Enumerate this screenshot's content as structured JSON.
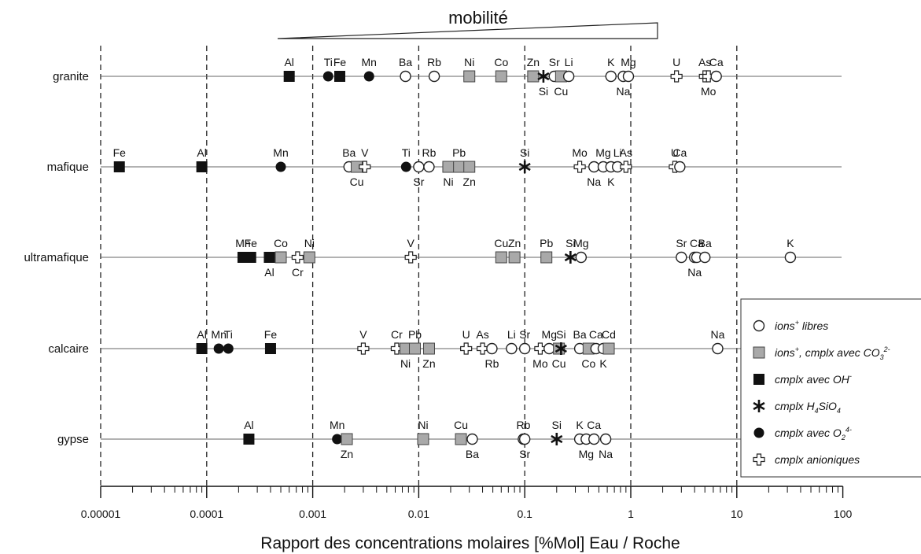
{
  "chart_data": {
    "type": "scatter",
    "title": "mobilité",
    "xlabel": "Rapport des concentrations molaires [%Mol]  Eau / Roche",
    "ylabel": "",
    "x_scale": "log",
    "xlim": [
      1e-05,
      100
    ],
    "x_ticks": [
      "0.00001",
      "0.0001",
      "0.001",
      "0.01",
      "0.1",
      "1",
      "10",
      "100"
    ],
    "x_tick_values": [
      1e-05,
      0.0001,
      0.001,
      0.01,
      0.1,
      1,
      10,
      100
    ],
    "dashed_reference_lines": [
      1e-05,
      0.0001,
      0.001,
      0.01,
      0.1,
      1,
      10
    ],
    "legend": {
      "position": "right",
      "entries": [
        {
          "type": "free_ion",
          "text": "ions",
          "sup": "+",
          "rest": " libres"
        },
        {
          "type": "co3_complex",
          "text": "ions",
          "sup": "+",
          "rest": ", cmplx avec CO",
          "sub": "3",
          "sup2": "2-"
        },
        {
          "type": "oh_complex",
          "text": "cmplx avec OH",
          "sup": "-"
        },
        {
          "type": "h4sio4_complex",
          "text": "cmplx H",
          "sub": "4",
          "rest": "SiO",
          "sub2": "4"
        },
        {
          "type": "o2_complex",
          "text": "cmplx avec O",
          "sub": "2",
          "sup": "4-"
        },
        {
          "type": "anionic_complex",
          "text": "cmplx anioniques"
        }
      ]
    },
    "rows": [
      {
        "name": "granite",
        "points": [
          {
            "el": "Al",
            "x": 0.0006,
            "type": "oh_complex",
            "pos": "above"
          },
          {
            "el": "Ti",
            "x": 0.0014,
            "type": "o2_complex",
            "pos": "above"
          },
          {
            "el": "Fe",
            "x": 0.0018,
            "type": "oh_complex",
            "pos": "above"
          },
          {
            "el": "Mn",
            "x": 0.0034,
            "type": "o2_complex",
            "pos": "above"
          },
          {
            "el": "Ba",
            "x": 0.0075,
            "type": "free_ion",
            "pos": "above"
          },
          {
            "el": "Rb",
            "x": 0.014,
            "type": "free_ion",
            "pos": "above"
          },
          {
            "el": "Ni",
            "x": 0.03,
            "type": "co3_complex",
            "pos": "above"
          },
          {
            "el": "Co",
            "x": 0.06,
            "type": "co3_complex",
            "pos": "above"
          },
          {
            "el": "Zn",
            "x": 0.12,
            "type": "co3_complex",
            "pos": "above"
          },
          {
            "el": "Si",
            "x": 0.15,
            "type": "h4sio4_complex",
            "pos": "below"
          },
          {
            "el": "Sr",
            "x": 0.19,
            "type": "free_ion",
            "pos": "above"
          },
          {
            "el": "Cu",
            "x": 0.22,
            "type": "co3_complex",
            "pos": "below"
          },
          {
            "el": "Li",
            "x": 0.26,
            "type": "free_ion",
            "pos": "above"
          },
          {
            "el": "K",
            "x": 0.65,
            "type": "free_ion",
            "pos": "above"
          },
          {
            "el": "Na",
            "x": 0.85,
            "type": "free_ion",
            "pos": "below"
          },
          {
            "el": "Mg",
            "x": 0.95,
            "type": "free_ion",
            "pos": "above"
          },
          {
            "el": "U",
            "x": 2.7,
            "type": "anionic_complex",
            "pos": "above"
          },
          {
            "el": "As",
            "x": 5.0,
            "type": "anionic_complex",
            "pos": "above"
          },
          {
            "el": "Mo",
            "x": 5.4,
            "type": "anionic_complex",
            "pos": "below"
          },
          {
            "el": "Ca",
            "x": 6.4,
            "type": "free_ion",
            "pos": "above"
          }
        ]
      },
      {
        "name": "mafique",
        "points": [
          {
            "el": "Fe",
            "x": 1.5e-05,
            "type": "oh_complex",
            "pos": "above"
          },
          {
            "el": "Al",
            "x": 9e-05,
            "type": "oh_complex",
            "pos": "above"
          },
          {
            "el": "Mn",
            "x": 0.0005,
            "type": "o2_complex",
            "pos": "above"
          },
          {
            "el": "Ba",
            "x": 0.0022,
            "type": "free_ion",
            "pos": "above"
          },
          {
            "el": "Cu",
            "x": 0.0026,
            "type": "co3_complex",
            "pos": "below"
          },
          {
            "el": "V",
            "x": 0.0031,
            "type": "anionic_complex",
            "pos": "above"
          },
          {
            "el": "Ti",
            "x": 0.0076,
            "type": "o2_complex",
            "pos": "above"
          },
          {
            "el": "Sr",
            "x": 0.01,
            "type": "free_ion",
            "pos": "below"
          },
          {
            "el": "Rb",
            "x": 0.0125,
            "type": "free_ion",
            "pos": "above"
          },
          {
            "el": "Ni",
            "x": 0.019,
            "type": "co3_complex",
            "pos": "below"
          },
          {
            "el": "Pb",
            "x": 0.024,
            "type": "co3_complex",
            "pos": "above"
          },
          {
            "el": "Zn",
            "x": 0.03,
            "type": "co3_complex",
            "pos": "below"
          },
          {
            "el": "Si",
            "x": 0.1,
            "type": "h4sio4_complex",
            "pos": "above"
          },
          {
            "el": "Mo",
            "x": 0.33,
            "type": "anionic_complex",
            "pos": "above"
          },
          {
            "el": "Na",
            "x": 0.45,
            "type": "free_ion",
            "pos": "below"
          },
          {
            "el": "Mg",
            "x": 0.55,
            "type": "free_ion",
            "pos": "above"
          },
          {
            "el": "K",
            "x": 0.65,
            "type": "free_ion",
            "pos": "below"
          },
          {
            "el": "Li",
            "x": 0.75,
            "type": "free_ion",
            "pos": "above"
          },
          {
            "el": "As",
            "x": 0.9,
            "type": "anionic_complex",
            "pos": "above"
          },
          {
            "el": "U",
            "x": 2.6,
            "type": "anionic_complex",
            "pos": "above"
          },
          {
            "el": "Ca",
            "x": 2.9,
            "type": "free_ion",
            "pos": "above"
          }
        ]
      },
      {
        "name": "ultramafique",
        "points": [
          {
            "el": "Mn",
            "x": 0.00022,
            "type": "oh_complex",
            "pos": "above"
          },
          {
            "el": "Fe",
            "x": 0.00026,
            "type": "oh_complex",
            "pos": "above"
          },
          {
            "el": "Al",
            "x": 0.00039,
            "type": "oh_complex",
            "pos": "below"
          },
          {
            "el": "Co",
            "x": 0.0005,
            "type": "co3_complex",
            "pos": "above"
          },
          {
            "el": "Cr",
            "x": 0.00072,
            "type": "anionic_complex",
            "pos": "below"
          },
          {
            "el": "Ni",
            "x": 0.00093,
            "type": "co3_complex",
            "pos": "above"
          },
          {
            "el": "V",
            "x": 0.0084,
            "type": "anionic_complex",
            "pos": "above"
          },
          {
            "el": "Cu",
            "x": 0.06,
            "type": "co3_complex",
            "pos": "above"
          },
          {
            "el": "Zn",
            "x": 0.08,
            "type": "co3_complex",
            "pos": "above"
          },
          {
            "el": "Pb",
            "x": 0.16,
            "type": "co3_complex",
            "pos": "above"
          },
          {
            "el": "Si",
            "x": 0.27,
            "type": "h4sio4_complex",
            "pos": "above"
          },
          {
            "el": "Mg",
            "x": 0.34,
            "type": "free_ion",
            "pos": "above"
          },
          {
            "el": "Sr",
            "x": 3.0,
            "type": "free_ion",
            "pos": "above"
          },
          {
            "el": "Na",
            "x": 4.0,
            "type": "free_ion",
            "pos": "below"
          },
          {
            "el": "Ca",
            "x": 4.2,
            "type": "free_ion",
            "pos": "above"
          },
          {
            "el": "Ba",
            "x": 5.0,
            "type": "free_ion",
            "pos": "above"
          },
          {
            "el": "K",
            "x": 32,
            "type": "free_ion",
            "pos": "above"
          }
        ]
      },
      {
        "name": "calcaire",
        "points": [
          {
            "el": "Al",
            "x": 9e-05,
            "type": "oh_complex",
            "pos": "above"
          },
          {
            "el": "Mn",
            "x": 0.00013,
            "type": "o2_complex",
            "pos": "above"
          },
          {
            "el": "Ti",
            "x": 0.00016,
            "type": "o2_complex",
            "pos": "above"
          },
          {
            "el": "Fe",
            "x": 0.0004,
            "type": "oh_complex",
            "pos": "above"
          },
          {
            "el": "V",
            "x": 0.003,
            "type": "anionic_complex",
            "pos": "above"
          },
          {
            "el": "Cr",
            "x": 0.0062,
            "type": "anionic_complex",
            "pos": "above"
          },
          {
            "el": "Ni",
            "x": 0.0075,
            "type": "co3_complex",
            "pos": "below"
          },
          {
            "el": "Pb",
            "x": 0.0092,
            "type": "co3_complex",
            "pos": "above"
          },
          {
            "el": "Zn",
            "x": 0.0125,
            "type": "co3_complex",
            "pos": "below"
          },
          {
            "el": "U",
            "x": 0.028,
            "type": "anionic_complex",
            "pos": "above"
          },
          {
            "el": "As",
            "x": 0.04,
            "type": "anionic_complex",
            "pos": "above"
          },
          {
            "el": "Rb",
            "x": 0.049,
            "type": "free_ion",
            "pos": "below"
          },
          {
            "el": "Li",
            "x": 0.075,
            "type": "free_ion",
            "pos": "above"
          },
          {
            "el": "Sr",
            "x": 0.1,
            "type": "free_ion",
            "pos": "above"
          },
          {
            "el": "Mo",
            "x": 0.14,
            "type": "anionic_complex",
            "pos": "below"
          },
          {
            "el": "Mg",
            "x": 0.17,
            "type": "free_ion",
            "pos": "above"
          },
          {
            "el": "Cu",
            "x": 0.21,
            "type": "co3_complex",
            "pos": "below"
          },
          {
            "el": "Si",
            "x": 0.22,
            "type": "h4sio4_complex",
            "pos": "above"
          },
          {
            "el": "Ba",
            "x": 0.33,
            "type": "free_ion",
            "pos": "above"
          },
          {
            "el": "Co",
            "x": 0.4,
            "type": "co3_complex",
            "pos": "below"
          },
          {
            "el": "Ca",
            "x": 0.47,
            "type": "free_ion",
            "pos": "above"
          },
          {
            "el": "K",
            "x": 0.55,
            "type": "free_ion",
            "pos": "below"
          },
          {
            "el": "Cd",
            "x": 0.62,
            "type": "co3_complex",
            "pos": "above"
          },
          {
            "el": "Na",
            "x": 6.6,
            "type": "free_ion",
            "pos": "above"
          }
        ]
      },
      {
        "name": "gypse",
        "points": [
          {
            "el": "Al",
            "x": 0.00025,
            "type": "oh_complex",
            "pos": "above"
          },
          {
            "el": "Mn",
            "x": 0.0017,
            "type": "o2_complex",
            "pos": "above"
          },
          {
            "el": "Zn",
            "x": 0.0021,
            "type": "co3_complex",
            "pos": "below"
          },
          {
            "el": "Ni",
            "x": 0.011,
            "type": "co3_complex",
            "pos": "above"
          },
          {
            "el": "Cu",
            "x": 0.025,
            "type": "co3_complex",
            "pos": "above"
          },
          {
            "el": "Ba",
            "x": 0.032,
            "type": "free_ion",
            "pos": "below"
          },
          {
            "el": "Rb",
            "x": 0.097,
            "type": "free_ion",
            "pos": "above"
          },
          {
            "el": "Sr",
            "x": 0.1,
            "type": "free_ion",
            "pos": "below"
          },
          {
            "el": "Si",
            "x": 0.2,
            "type": "h4sio4_complex",
            "pos": "above"
          },
          {
            "el": "K",
            "x": 0.33,
            "type": "free_ion",
            "pos": "above"
          },
          {
            "el": "Mg",
            "x": 0.38,
            "type": "free_ion",
            "pos": "below"
          },
          {
            "el": "Ca",
            "x": 0.45,
            "type": "free_ion",
            "pos": "above"
          },
          {
            "el": "Na",
            "x": 0.58,
            "type": "free_ion",
            "pos": "below"
          }
        ]
      }
    ]
  }
}
